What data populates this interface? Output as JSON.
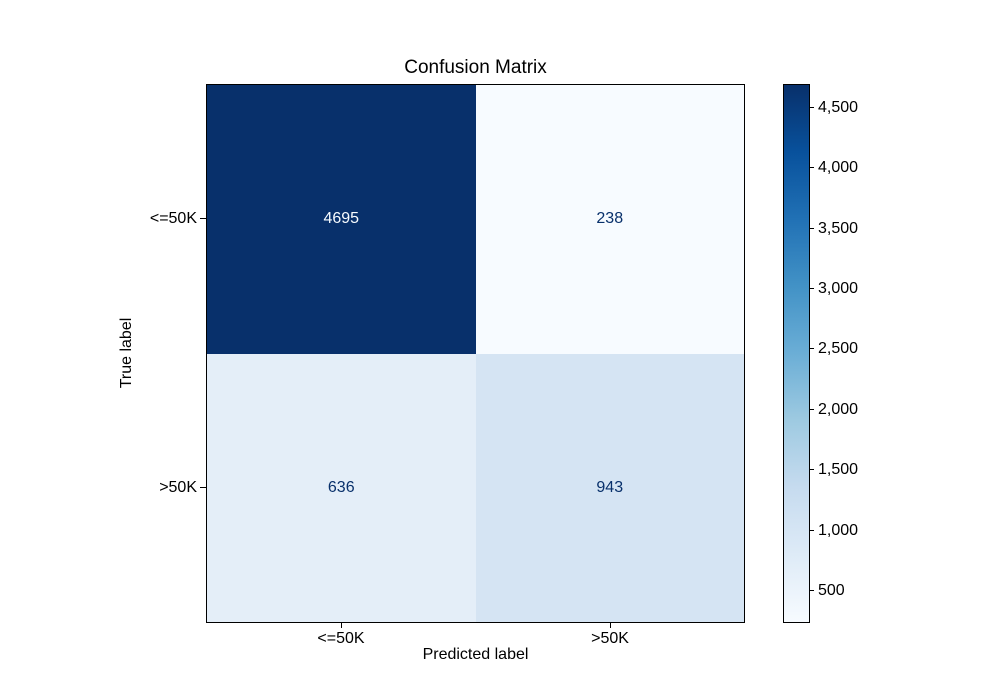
{
  "chart_data": {
    "type": "heatmap",
    "title": "Confusion Matrix",
    "xlabel": "Predicted label",
    "ylabel": "True label",
    "x_categories": [
      "<=50K",
      ">50K"
    ],
    "y_categories": [
      "<=50K",
      ">50K"
    ],
    "matrix": [
      [
        4695,
        238
      ],
      [
        636,
        943
      ]
    ],
    "cell_labels": [
      [
        "4695",
        "238"
      ],
      [
        "636",
        "943"
      ]
    ],
    "cell_colors": [
      [
        "#08306b",
        "#f7fbff"
      ],
      [
        "#e4eef8",
        "#d5e4f3"
      ]
    ],
    "cell_text_colors": [
      [
        "#f7fbff",
        "#08306b"
      ],
      [
        "#08306b",
        "#08306b"
      ]
    ],
    "colormap": "Blues",
    "vmin": 238,
    "vmax": 4695,
    "colorbar_ticks": [
      500,
      1000,
      1500,
      2000,
      2500,
      3000,
      3500,
      4000,
      4500
    ],
    "colorbar_tick_labels": [
      "500",
      "1,000",
      "1,500",
      "2,000",
      "2,500",
      "3,000",
      "3,500",
      "4,000",
      "4,500"
    ],
    "colorbar_gradient": [
      "#f7fbff",
      "#deebf7",
      "#c6dbef",
      "#9ecae1",
      "#6baed6",
      "#4292c6",
      "#2171b5",
      "#08519c",
      "#08306b"
    ],
    "axis_color": "#000000",
    "legend_position": "right-colorbar",
    "grid": false
  }
}
